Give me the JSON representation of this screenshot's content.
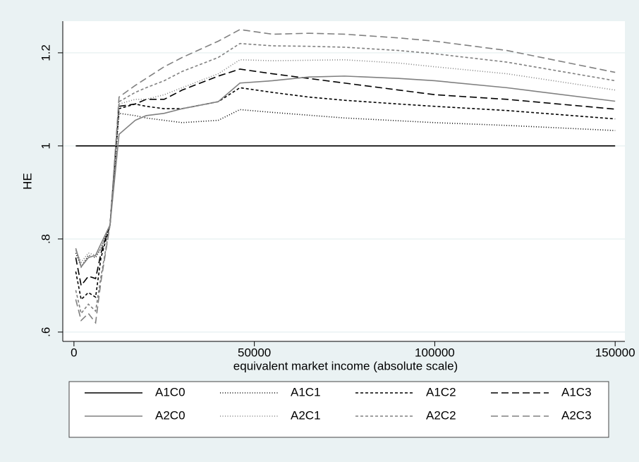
{
  "chart_data": {
    "type": "line",
    "x_label": "equivalent market income (absolute scale)",
    "y_label": "HE",
    "x": [
      500,
      2000,
      4000,
      6000,
      7500,
      10000,
      12500,
      17000,
      20000,
      25000,
      30000,
      40000,
      46000,
      55000,
      65000,
      75000,
      90000,
      100000,
      120000,
      150000
    ],
    "xlim": [
      -3100,
      152700
    ],
    "xticks": [
      0,
      50000,
      100000,
      150000
    ],
    "ylim": [
      0.58,
      1.268
    ],
    "yticks": [
      {
        "value": 0.6,
        "label": ".6"
      },
      {
        "value": 0.8,
        "label": ".8"
      },
      1,
      1.2
    ],
    "grid": true,
    "series": [
      {
        "name": "A1C0",
        "color": "#000000",
        "line_style": "solid",
        "values": [
          1,
          1,
          1,
          1,
          1,
          1,
          1,
          1,
          1,
          1,
          1,
          1,
          1,
          1,
          1,
          1,
          1,
          1,
          1,
          1
        ]
      },
      {
        "name": "A1C1",
        "color": "#000000",
        "line_style": "dotted",
        "values": [
          0.77,
          0.74,
          0.765,
          0.76,
          0.78,
          0.83,
          1.07,
          1.065,
          1.06,
          1.055,
          1.05,
          1.055,
          1.078,
          1.072,
          1.066,
          1.06,
          1.054,
          1.05,
          1.044,
          1.033
        ]
      },
      {
        "name": "A1C2",
        "color": "#000000",
        "line_style": "short-dash",
        "values": [
          0.73,
          0.67,
          0.685,
          0.675,
          0.76,
          0.83,
          1.08,
          1.09,
          1.085,
          1.08,
          1.08,
          1.095,
          1.125,
          1.115,
          1.105,
          1.098,
          1.09,
          1.085,
          1.076,
          1.058
        ]
      },
      {
        "name": "A1C3",
        "color": "#000000",
        "line_style": "long-dash",
        "values": [
          0.76,
          0.7,
          0.72,
          0.715,
          0.77,
          0.83,
          1.085,
          1.09,
          1.1,
          1.1,
          1.12,
          1.15,
          1.165,
          1.155,
          1.145,
          1.135,
          1.12,
          1.11,
          1.1,
          1.079
        ]
      },
      {
        "name": "A2C0",
        "color": "#808080",
        "line_style": "solid",
        "values": [
          0.78,
          0.74,
          0.76,
          0.765,
          0.79,
          0.83,
          1.025,
          1.055,
          1.065,
          1.07,
          1.08,
          1.095,
          1.135,
          1.14,
          1.148,
          1.15,
          1.145,
          1.14,
          1.125,
          1.096
        ]
      },
      {
        "name": "A2C1",
        "color": "#808080",
        "line_style": "dotted",
        "values": [
          0.775,
          0.75,
          0.77,
          0.765,
          0.78,
          0.83,
          1.09,
          1.1,
          1.1,
          1.11,
          1.125,
          1.155,
          1.185,
          1.183,
          1.184,
          1.185,
          1.178,
          1.17,
          1.155,
          1.12
        ]
      },
      {
        "name": "A2C2",
        "color": "#808080",
        "line_style": "short-dash",
        "values": [
          0.69,
          0.64,
          0.66,
          0.645,
          0.72,
          0.83,
          1.095,
          1.115,
          1.125,
          1.14,
          1.16,
          1.19,
          1.22,
          1.215,
          1.214,
          1.212,
          1.205,
          1.198,
          1.18,
          1.14
        ]
      },
      {
        "name": "A2C3",
        "color": "#808080",
        "line_style": "long-dash",
        "values": [
          0.67,
          0.625,
          0.64,
          0.62,
          0.71,
          0.83,
          1.105,
          1.13,
          1.145,
          1.17,
          1.19,
          1.225,
          1.25,
          1.24,
          1.242,
          1.24,
          1.232,
          1.225,
          1.205,
          1.158
        ]
      }
    ]
  }
}
